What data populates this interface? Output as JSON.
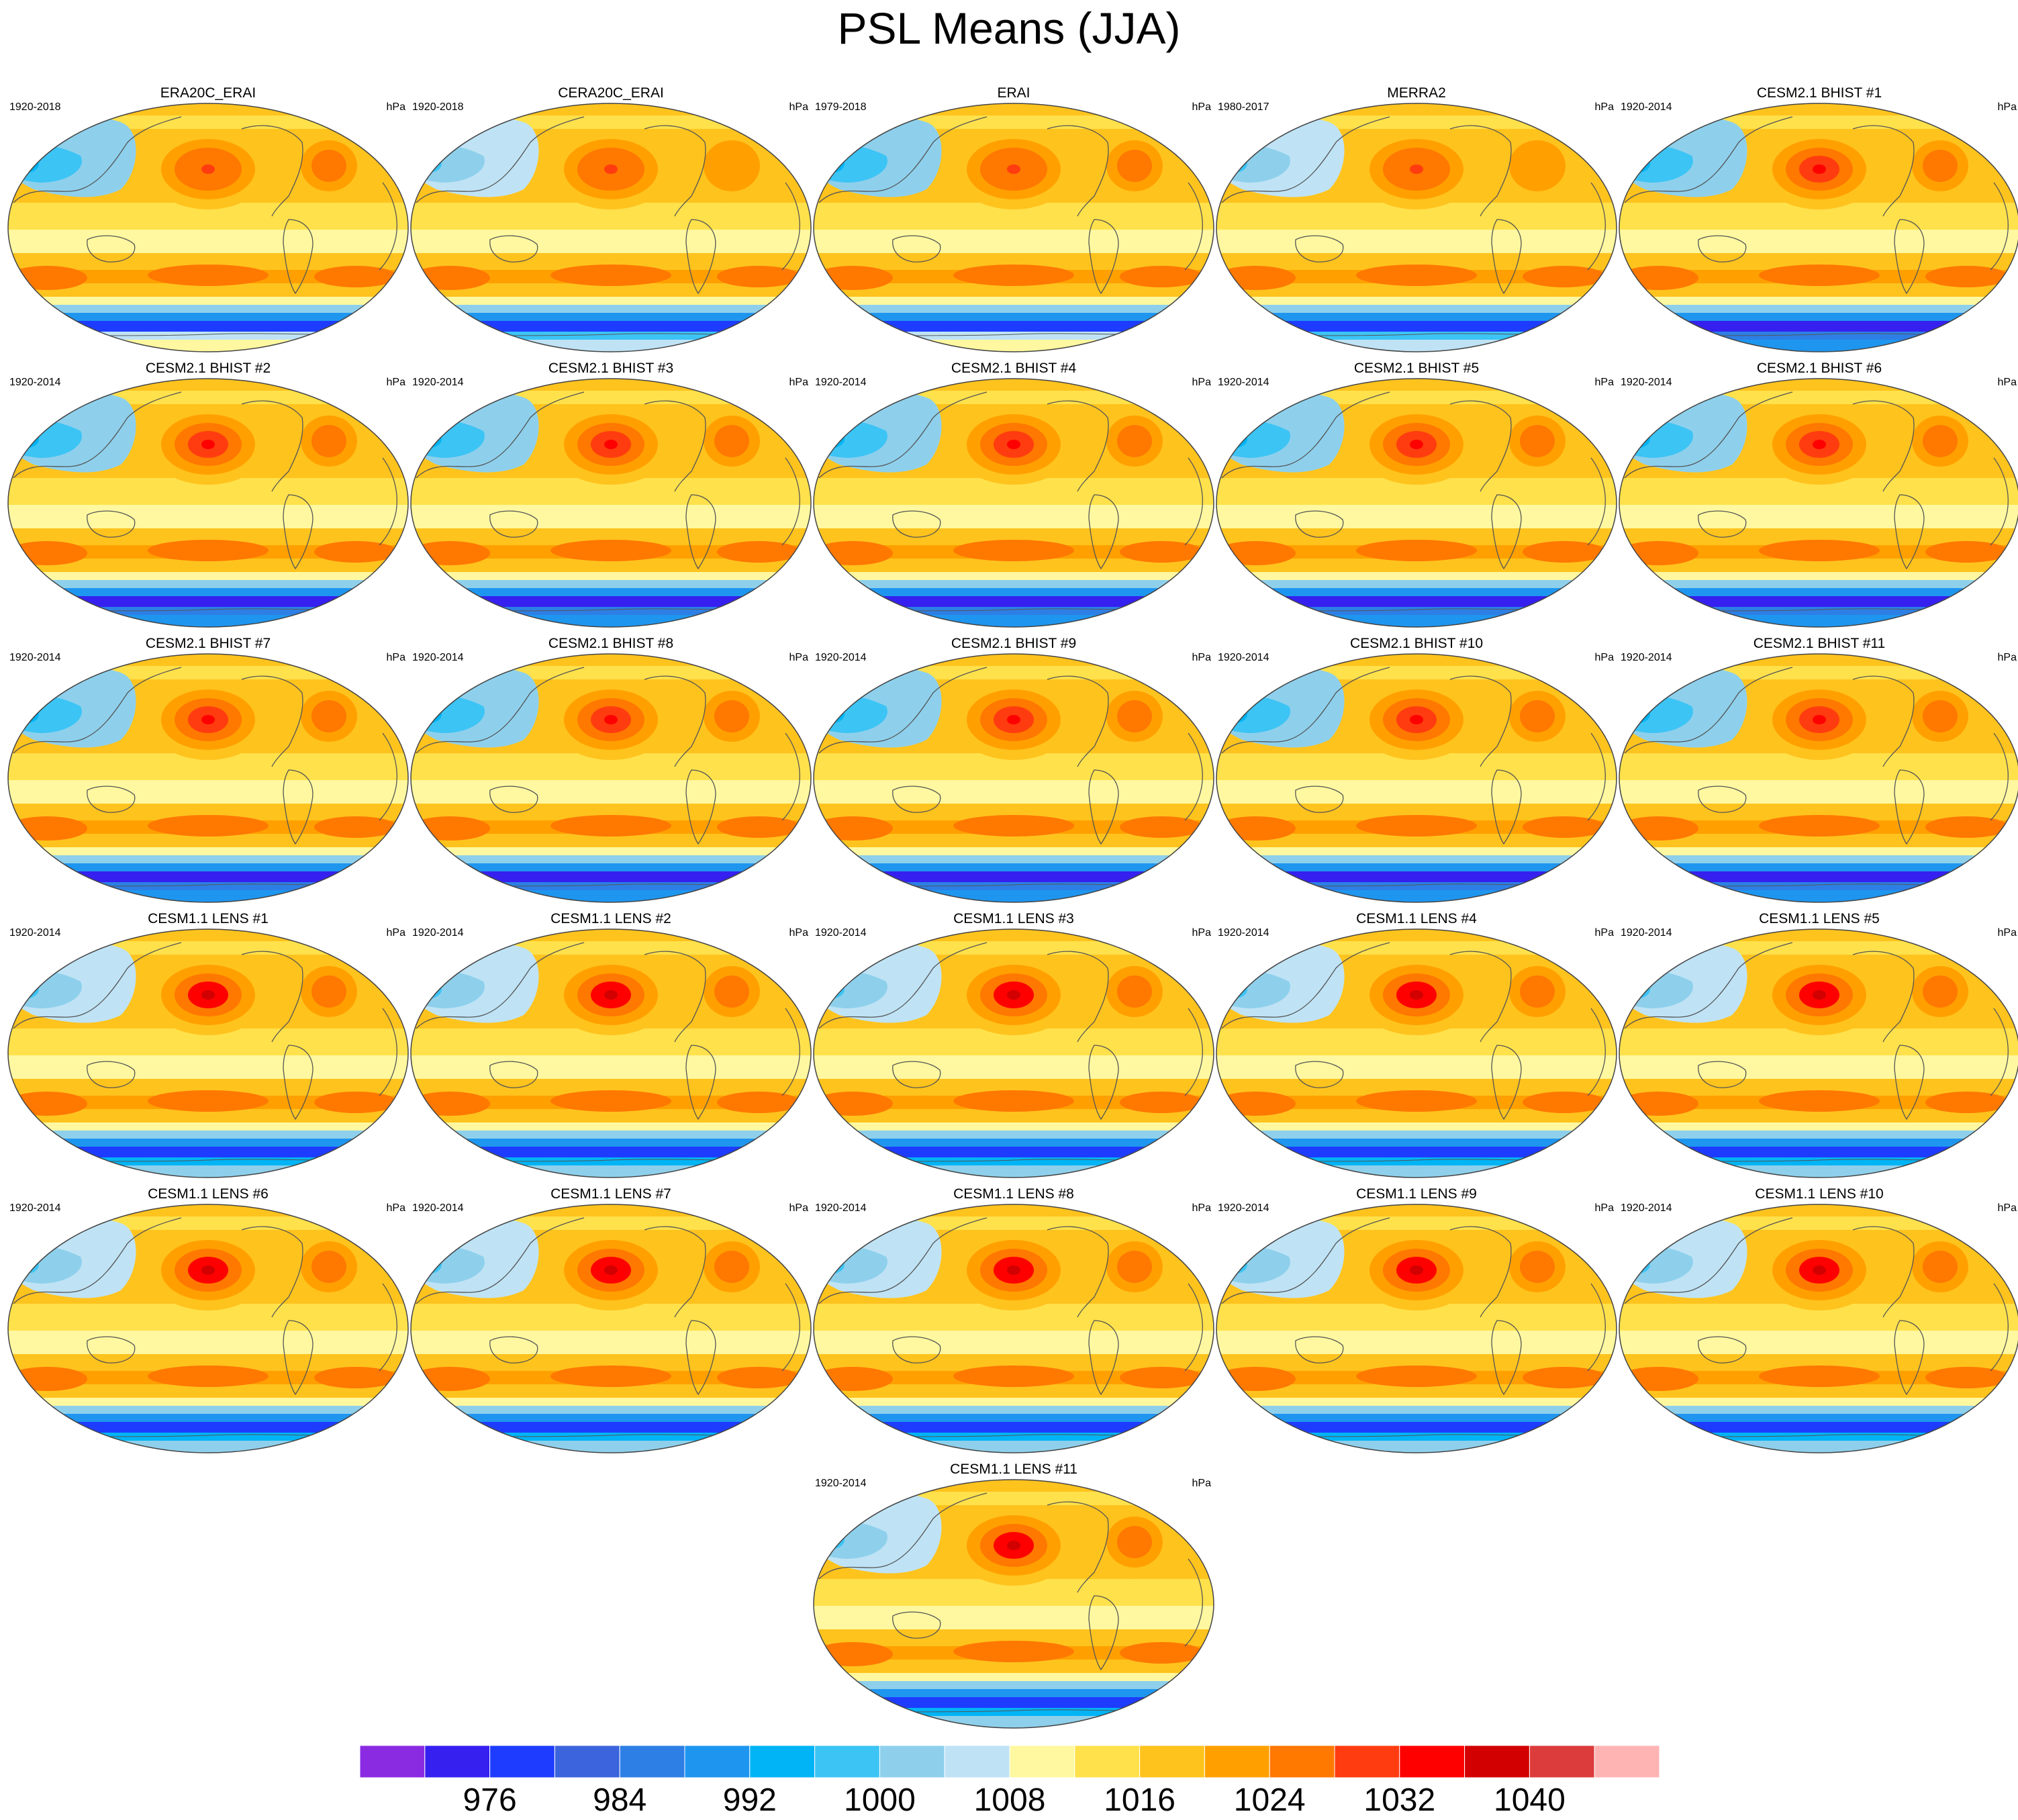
{
  "title": "PSL Means (JJA)",
  "units": "hPa",
  "panels": [
    {
      "name": "ERA20C_ERAI",
      "period": "1920-2018",
      "variant": 0
    },
    {
      "name": "CERA20C_ERAI",
      "period": "1920-2018",
      "variant": 1
    },
    {
      "name": "ERAI",
      "period": "1979-2018",
      "variant": 0
    },
    {
      "name": "MERRA2",
      "period": "1980-2017",
      "variant": 1
    },
    {
      "name": "CESM2.1 BHIST #1",
      "period": "1920-2014",
      "variant": 2
    },
    {
      "name": "CESM2.1 BHIST #2",
      "period": "1920-2014",
      "variant": 2
    },
    {
      "name": "CESM2.1 BHIST #3",
      "period": "1920-2014",
      "variant": 2
    },
    {
      "name": "CESM2.1 BHIST #4",
      "period": "1920-2014",
      "variant": 2
    },
    {
      "name": "CESM2.1 BHIST #5",
      "period": "1920-2014",
      "variant": 2
    },
    {
      "name": "CESM2.1 BHIST #6",
      "period": "1920-2014",
      "variant": 2
    },
    {
      "name": "CESM2.1 BHIST #7",
      "period": "1920-2014",
      "variant": 2
    },
    {
      "name": "CESM2.1 BHIST #8",
      "period": "1920-2014",
      "variant": 2
    },
    {
      "name": "CESM2.1 BHIST #9",
      "period": "1920-2014",
      "variant": 2
    },
    {
      "name": "CESM2.1 BHIST #10",
      "period": "1920-2014",
      "variant": 2
    },
    {
      "name": "CESM2.1 BHIST #11",
      "period": "1920-2014",
      "variant": 2
    },
    {
      "name": "CESM1.1 LENS #1",
      "period": "1920-2014",
      "variant": 3
    },
    {
      "name": "CESM1.1 LENS #2",
      "period": "1920-2014",
      "variant": 3
    },
    {
      "name": "CESM1.1 LENS #3",
      "period": "1920-2014",
      "variant": 3
    },
    {
      "name": "CESM1.1 LENS #4",
      "period": "1920-2014",
      "variant": 3
    },
    {
      "name": "CESM1.1 LENS #5",
      "period": "1920-2014",
      "variant": 3
    },
    {
      "name": "CESM1.1 LENS #6",
      "period": "1920-2014",
      "variant": 3
    },
    {
      "name": "CESM1.1 LENS #7",
      "period": "1920-2014",
      "variant": 3
    },
    {
      "name": "CESM1.1 LENS #8",
      "period": "1920-2014",
      "variant": 3
    },
    {
      "name": "CESM1.1 LENS #9",
      "period": "1920-2014",
      "variant": 3
    },
    {
      "name": "CESM1.1 LENS #10",
      "period": "1920-2014",
      "variant": 3
    },
    {
      "name": "CESM1.1 LENS #11",
      "period": "1920-2014",
      "variant": 3
    }
  ],
  "colorbar": {
    "colors": [
      "#8a2be2",
      "#3520f0",
      "#1e3cff",
      "#3c64dc",
      "#2d7fe6",
      "#1e96f0",
      "#00b4f5",
      "#3cc4f5",
      "#8ed0ec",
      "#bfe3f5",
      "#fff8a0",
      "#ffe14b",
      "#ffc31e",
      "#ffa000",
      "#ff7800",
      "#ff3c0f",
      "#ff0000",
      "#d20000",
      "#dc3c3c",
      "#ffb4b4"
    ],
    "tick_labels": [
      "976",
      "984",
      "992",
      "1000",
      "1008",
      "1016",
      "1024",
      "1032",
      "1040"
    ],
    "tick_boundary_index": [
      2,
      4,
      6,
      8,
      10,
      12,
      14,
      16,
      18
    ]
  }
}
